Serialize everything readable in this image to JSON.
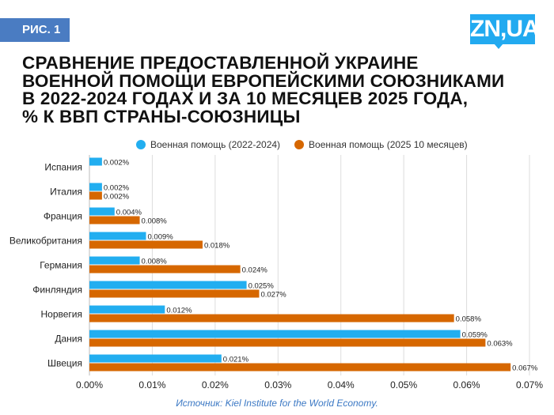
{
  "badge": "РИС. 1",
  "logo": "ZN,UA",
  "title_lines": [
    "СРАВНЕНИЕ ПРЕДОСТАВЛЕННОЙ УКРАИНЕ",
    "ВОЕННОЙ ПОМОЩИ ЕВРОПЕЙСКИМИ СОЮЗНИКАМИ",
    "В 2022-2024 ГОДАХ И ЗА 10 МЕСЯЦЕВ 2025 ГОДА,",
    "% К ВВП СТРАНЫ-СОЮЗНИЦЫ"
  ],
  "source": "Источник: Kiel Institute for the World Economy.",
  "chart_data": {
    "type": "bar",
    "orientation": "horizontal",
    "categories": [
      "Испания",
      "Италия",
      "Франция",
      "Великобритания",
      "Германия",
      "Финляндия",
      "Норвегия",
      "Дания",
      "Швеция"
    ],
    "series": [
      {
        "name": "Военная помощь (2022-2024)",
        "color": "#22aef0",
        "values": [
          0.002,
          0.002,
          0.004,
          0.009,
          0.008,
          0.025,
          0.012,
          0.059,
          0.021
        ]
      },
      {
        "name": "Военная помощь (2025 10 месяцев)",
        "color": "#d66700",
        "values": [
          null,
          0.002,
          0.008,
          0.018,
          0.024,
          0.027,
          0.058,
          0.063,
          0.067
        ]
      }
    ],
    "xlim": [
      0,
      0.07
    ],
    "xticks": [
      "0.00%",
      "0.01%",
      "0.02%",
      "0.03%",
      "0.04%",
      "0.05%",
      "0.06%",
      "0.07%"
    ],
    "grid": true,
    "legend": "top",
    "value_format": "percent"
  }
}
